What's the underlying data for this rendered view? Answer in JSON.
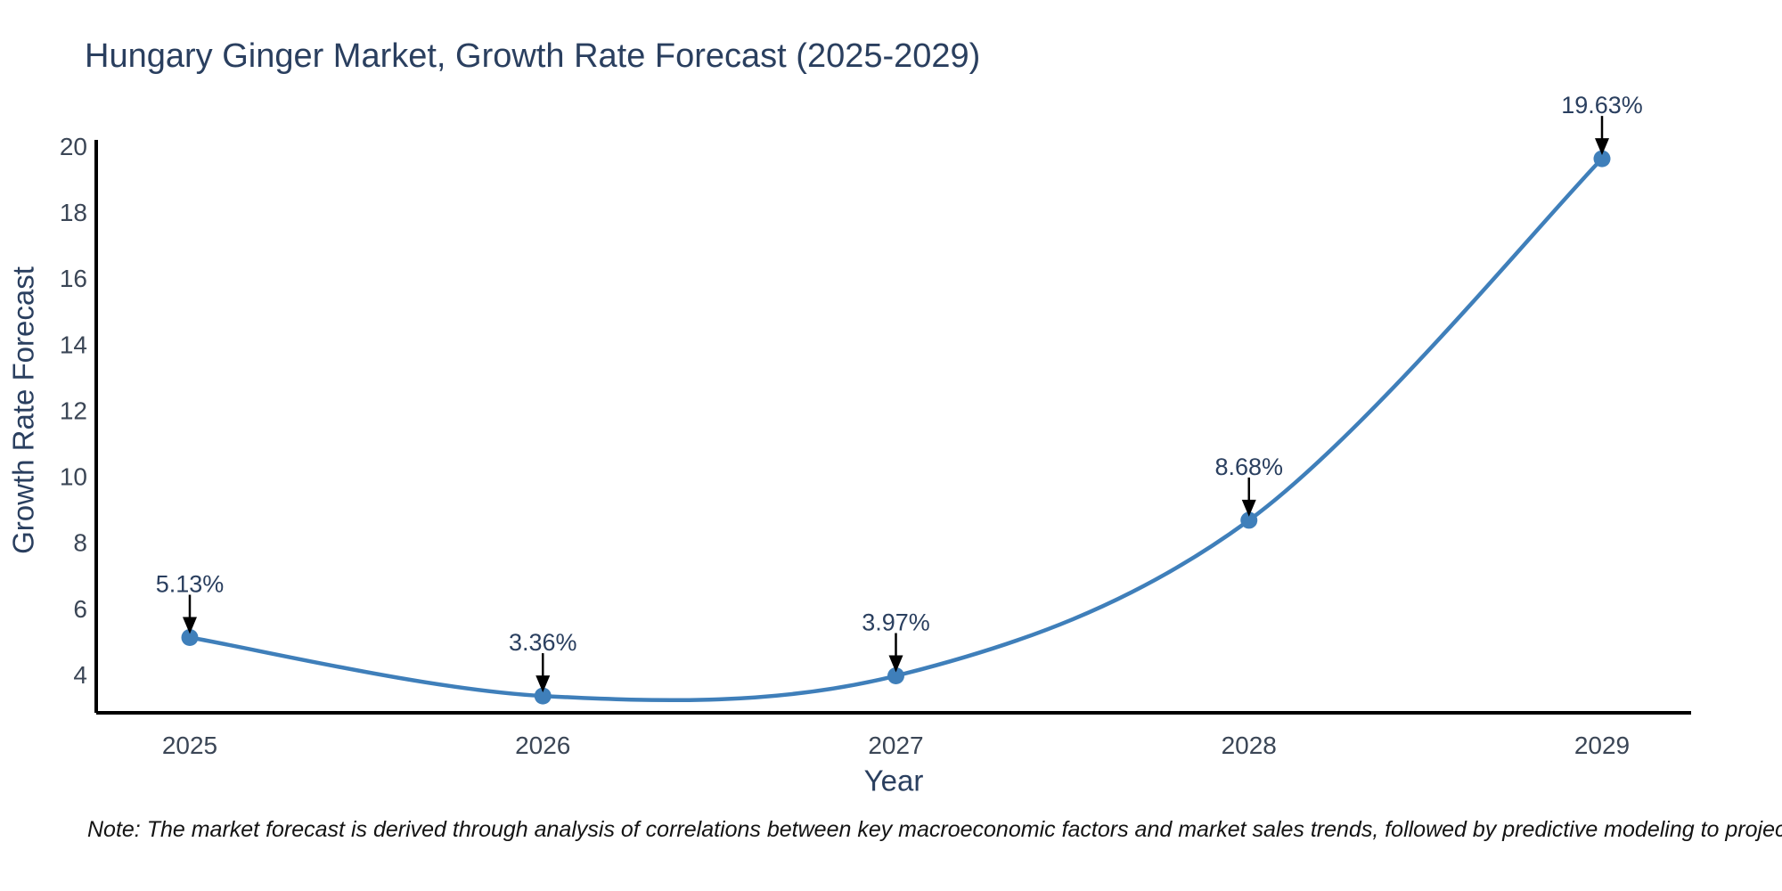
{
  "note": "Note: The market forecast is derived through analysis of correlations between key macroeconomic factors and market sales trends, followed by predictive modeling to project future sales.",
  "chart_data": {
    "type": "line",
    "title": "Hungary Ginger Market, Growth Rate Forecast (2025-2029)",
    "line_shape": "spline",
    "categories": [
      "2025",
      "2026",
      "2027",
      "2028",
      "2029"
    ],
    "values": [
      5.13,
      3.36,
      3.97,
      8.68,
      19.63
    ],
    "point_labels": [
      "5.13%",
      "3.36%",
      "3.97%",
      "8.68%",
      "19.63%"
    ],
    "xlabel": "Year",
    "ylabel": "Growth Rate Forecast",
    "ylim": [
      2.85,
      20.2
    ],
    "yticks": [
      4,
      6,
      8,
      10,
      12,
      14,
      16,
      18,
      20
    ],
    "grid": false,
    "legend_position": "none",
    "markers": true,
    "annotation_style": "arrow-down",
    "colors": {
      "series": "#3f7fba",
      "axis_line": "#000000",
      "tick_label": "#3b4656",
      "title_text": "#2a3f5f",
      "annotation_text": "#2a3f5f",
      "arrow": "#000000"
    }
  }
}
